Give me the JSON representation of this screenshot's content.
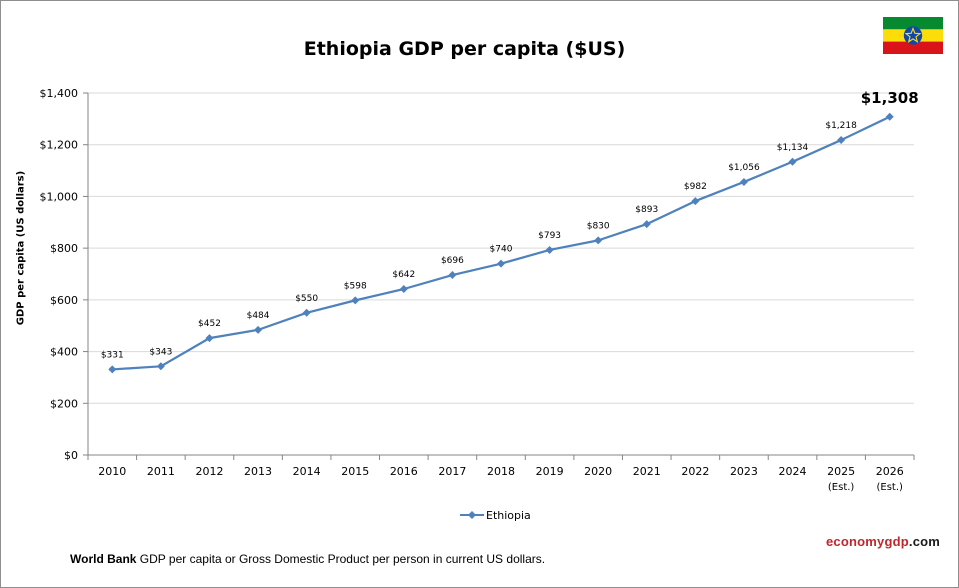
{
  "chart_data": {
    "type": "line",
    "title": "Ethiopia GDP per capita ($US)",
    "ylabel": "GDP per capita (US dollars)",
    "xlabel": "",
    "categories": [
      {
        "line1": "2010",
        "line2": ""
      },
      {
        "line1": "2011",
        "line2": ""
      },
      {
        "line1": "2012",
        "line2": ""
      },
      {
        "line1": "2013",
        "line2": ""
      },
      {
        "line1": "2014",
        "line2": ""
      },
      {
        "line1": "2015",
        "line2": ""
      },
      {
        "line1": "2016",
        "line2": ""
      },
      {
        "line1": "2017",
        "line2": ""
      },
      {
        "line1": "2018",
        "line2": ""
      },
      {
        "line1": "2019",
        "line2": ""
      },
      {
        "line1": "2020",
        "line2": ""
      },
      {
        "line1": "2021",
        "line2": ""
      },
      {
        "line1": "2022",
        "line2": ""
      },
      {
        "line1": "2023",
        "line2": ""
      },
      {
        "line1": "2024",
        "line2": ""
      },
      {
        "line1": "2025",
        "line2": "(Est.)"
      },
      {
        "line1": "2026",
        "line2": "(Est.)"
      }
    ],
    "series": [
      {
        "name": "Ethiopia",
        "color": "#4f81bd",
        "values": [
          331,
          343,
          452,
          484,
          550,
          598,
          642,
          696,
          740,
          793,
          830,
          893,
          982,
          1056,
          1134,
          1218,
          1308
        ],
        "labels": [
          "$331",
          "$343",
          "$452",
          "$484",
          "$550",
          "$598",
          "$642",
          "$696",
          "$740",
          "$793",
          "$830",
          "$893",
          "$982",
          "$1,056",
          "$1,134",
          "$1,218",
          "$1,308"
        ]
      }
    ],
    "ylim": [
      0,
      1400
    ],
    "yticks": [
      {
        "value": 0,
        "label": "$0"
      },
      {
        "value": 200,
        "label": "$200"
      },
      {
        "value": 400,
        "label": "$400"
      },
      {
        "value": 600,
        "label": "$600"
      },
      {
        "value": 800,
        "label": "$800"
      },
      {
        "value": 1000,
        "label": "$1,000"
      },
      {
        "value": 1200,
        "label": "$1,200"
      },
      {
        "value": 1400,
        "label": "$1,400"
      }
    ],
    "grid": true,
    "legend": "bottom",
    "highlight_last_label": true
  },
  "footer": {
    "source": "World Bank",
    "text": "GDP per capita or Gross Domestic Product per person in current US dollars."
  },
  "brand": {
    "part1": "economy",
    "part2": "gdp",
    "part3": ".com"
  },
  "colors": {
    "flag_green": "#078930",
    "flag_yellow": "#fcdd09",
    "flag_red": "#da121a",
    "emblem_blue": "#0f47af",
    "gridline": "#d9d9d9"
  }
}
